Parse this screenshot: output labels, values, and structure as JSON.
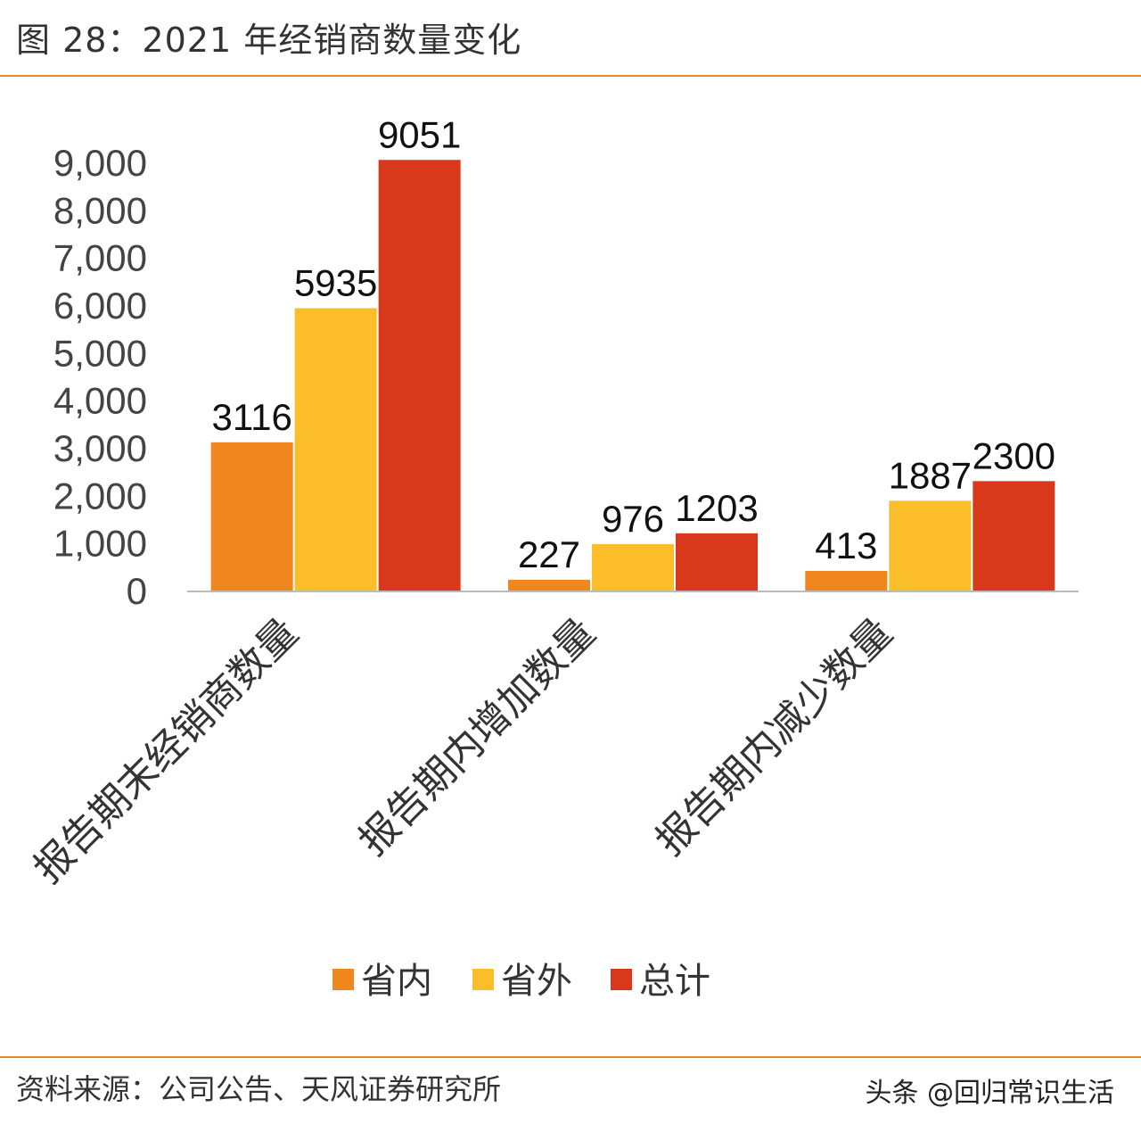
{
  "title": "图 28：2021 年经销商数量变化",
  "source": "资料来源：公司公告、天风证券研究所",
  "watermark": "头条 @回归常识生活",
  "colors": {
    "accent_rule": "#E8892B"
  },
  "chart_data": {
    "type": "bar",
    "title": "",
    "xlabel": "",
    "ylabel": "",
    "ylim": [
      0,
      9000
    ],
    "yticks": [
      "0",
      "1,000",
      "2,000",
      "3,000",
      "4,000",
      "5,000",
      "6,000",
      "7,000",
      "8,000",
      "9,000"
    ],
    "ytick_values": [
      0,
      1000,
      2000,
      3000,
      4000,
      5000,
      6000,
      7000,
      8000,
      9000
    ],
    "grid": false,
    "legend_position": "bottom",
    "categories": [
      "报告期末经销商数量",
      "报告期内增加数量",
      "报告期内减少数量"
    ],
    "series": [
      {
        "name": "省内",
        "color": "#F0861E",
        "values": [
          3116,
          227,
          413
        ]
      },
      {
        "name": "省外",
        "color": "#FBBE2A",
        "values": [
          5935,
          976,
          1887
        ]
      },
      {
        "name": "总计",
        "color": "#D9391B",
        "values": [
          9051,
          1203,
          2300
        ]
      }
    ]
  }
}
